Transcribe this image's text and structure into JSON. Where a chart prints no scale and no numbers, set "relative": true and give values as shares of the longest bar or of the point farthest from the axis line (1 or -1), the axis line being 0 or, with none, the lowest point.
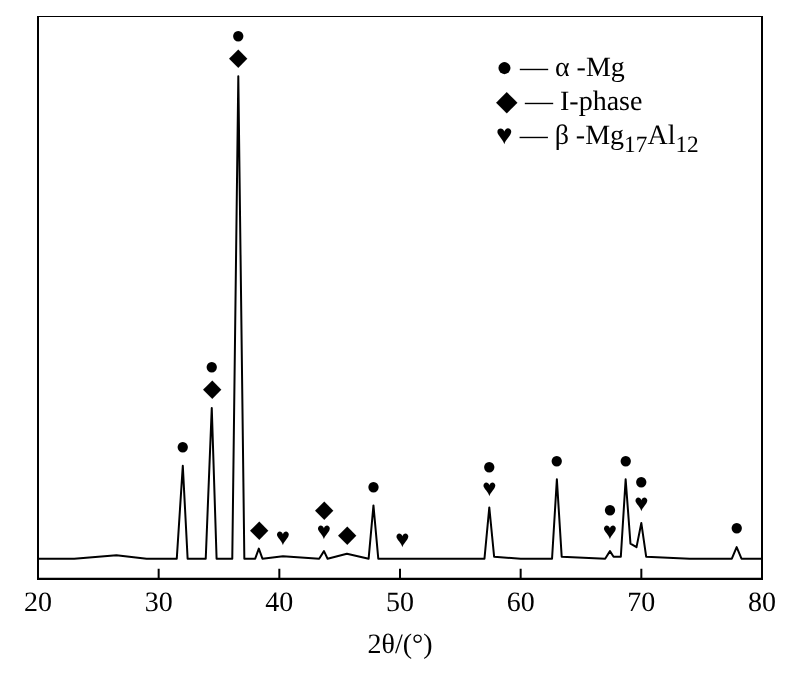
{
  "chart_data": {
    "type": "line",
    "relative": true,
    "xlabel": "2θ/(°)",
    "xlim": [
      20,
      80
    ],
    "xticks": [
      20,
      30,
      40,
      50,
      60,
      70,
      80
    ],
    "grid": false,
    "legend": false,
    "marker": "none",
    "line_style": "solid",
    "series": [
      {
        "color": "#000000",
        "x": [
          20,
          23,
          26.5,
          29,
          31.5,
          32.0,
          32.4,
          33.9,
          34.4,
          34.8,
          36.1,
          36.6,
          37.1,
          38.0,
          38.3,
          38.6,
          40.3,
          43.3,
          43.7,
          44.0,
          45.6,
          47.4,
          47.8,
          48.2,
          50.2,
          53,
          57.0,
          57.4,
          57.8,
          60,
          62.6,
          63.0,
          63.4,
          67.0,
          67.4,
          67.7,
          68.3,
          68.7,
          69.1,
          69.6,
          70.0,
          70.4,
          74,
          77.5,
          77.9,
          78.3,
          80
        ],
        "values": [
          0.04,
          0.04,
          0.047,
          0.04,
          0.04,
          0.225,
          0.04,
          0.04,
          0.34,
          0.04,
          0.04,
          1.0,
          0.04,
          0.04,
          0.06,
          0.04,
          0.045,
          0.04,
          0.055,
          0.04,
          0.05,
          0.04,
          0.146,
          0.04,
          0.04,
          0.04,
          0.04,
          0.142,
          0.044,
          0.04,
          0.04,
          0.198,
          0.044,
          0.04,
          0.055,
          0.044,
          0.044,
          0.198,
          0.07,
          0.063,
          0.111,
          0.044,
          0.04,
          0.04,
          0.063,
          0.04,
          0.04
        ]
      }
    ],
    "annotations": [
      "● — α -Mg",
      "◆ — I-phase",
      "♥ — β -Mg$_{17}$Al$_{12}$",
      {
        "text": "●",
        "x": 32.0,
        "y": 0.225
      },
      {
        "text": "●",
        "x": 34.4,
        "y": 0.34
      },
      {
        "text": "◆",
        "x": 34.4,
        "y": 0.34
      },
      {
        "text": "●",
        "x": 36.6,
        "y": 1.0
      },
      {
        "text": "◆",
        "x": 36.6,
        "y": 1.0
      },
      {
        "text": "◆",
        "x": 38.3,
        "y": 0.06
      },
      {
        "text": "♥",
        "x": 40.3,
        "y": 0.045
      },
      {
        "text": "◆",
        "x": 43.7,
        "y": 0.055
      },
      {
        "text": "♥",
        "x": 43.7,
        "y": 0.055
      },
      {
        "text": "◆",
        "x": 45.6,
        "y": 0.05
      },
      {
        "text": "●",
        "x": 47.8,
        "y": 0.146
      },
      {
        "text": "♥",
        "x": 50.2,
        "y": 0.04
      },
      {
        "text": "●",
        "x": 57.4,
        "y": 0.142
      },
      {
        "text": "♥",
        "x": 57.4,
        "y": 0.142
      },
      {
        "text": "●",
        "x": 63.0,
        "y": 0.198
      },
      {
        "text": "●",
        "x": 67.4,
        "y": 0.055
      },
      {
        "text": "♥",
        "x": 67.4,
        "y": 0.055
      },
      {
        "text": "●",
        "x": 68.7,
        "y": 0.198
      },
      {
        "text": "●",
        "x": 70.0,
        "y": 0.111
      },
      {
        "text": "♥",
        "x": 70.0,
        "y": 0.111
      },
      {
        "text": "●",
        "x": 77.9,
        "y": 0.063
      }
    ]
  }
}
